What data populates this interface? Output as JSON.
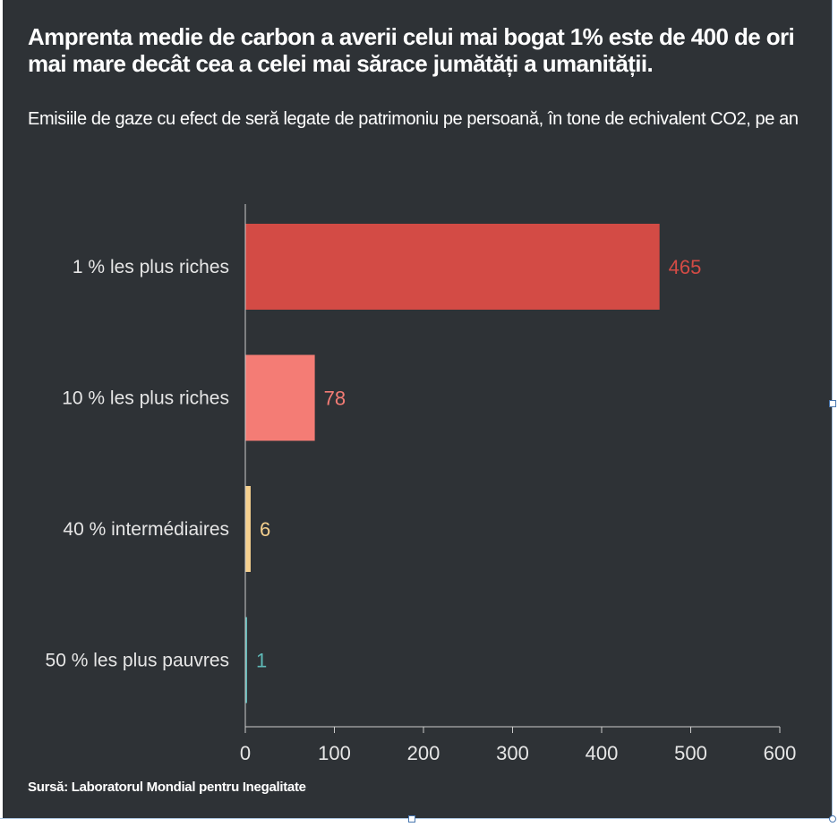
{
  "title": "Amprenta medie de carbon a averii celui mai bogat 1% este de 400 de ori mai mare decât cea a celei mai sărace jumătăți a umanității.",
  "subtitle": "Emisiile de gaze cu efect de seră legate de patrimoniu pe persoană, în tone de echivalent CO2, pe an",
  "source": "Sursă: Laboratorul Mondial pentru Inegalitate",
  "chart_data": {
    "type": "bar",
    "orientation": "horizontal",
    "categories": [
      "1 % les plus riches",
      "10 % les plus riches",
      "40 % intermédiaires",
      "50 % les plus pauvres"
    ],
    "values": [
      465,
      78,
      6,
      1
    ],
    "value_labels": [
      "465",
      "78",
      "6",
      "1"
    ],
    "colors": [
      "#d34b45",
      "#f47c75",
      "#f5d08e",
      "#5fbab8"
    ],
    "xlim": [
      0,
      600
    ],
    "xticks": [
      0,
      100,
      200,
      300,
      400,
      500,
      600
    ],
    "grid": false
  },
  "colors": {
    "background": "#2e3236",
    "text": "#ffffff",
    "axis": "#cccccc"
  }
}
